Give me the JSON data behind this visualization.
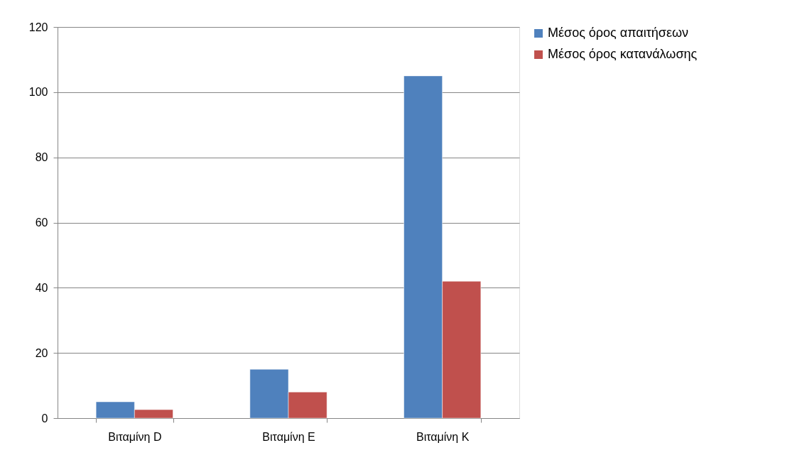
{
  "chart_data": {
    "type": "bar",
    "categories": [
      "Βιταμίνη D",
      "Βιταμίνη E",
      "Βιταμίνη K"
    ],
    "series": [
      {
        "name": "Μέσος όρος απαιτήσεων",
        "color": "#4f81bd",
        "values": [
          5,
          15,
          105
        ]
      },
      {
        "name": "Μέσος όρος κατανάλωσης",
        "color": "#c0504d",
        "values": [
          2.6,
          8,
          42
        ]
      }
    ],
    "ylim": [
      0,
      120
    ],
    "yticks": [
      0,
      20,
      40,
      60,
      80,
      100,
      120
    ],
    "grid": "y",
    "legend": "right"
  }
}
